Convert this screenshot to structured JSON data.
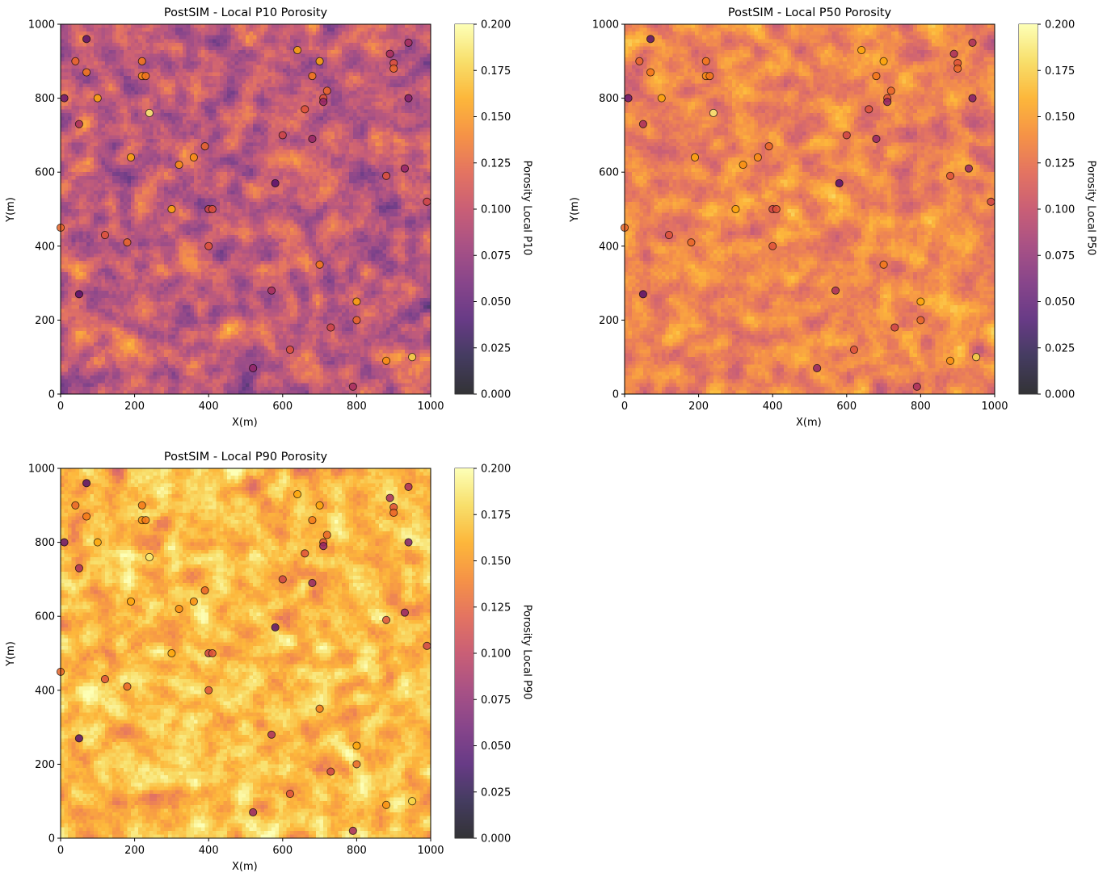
{
  "chart_data": [
    {
      "type": "heatmap",
      "title": "PostSIM - Local P10 Porosity",
      "xlabel": "X(m)",
      "ylabel": "Y(m)",
      "xlim": [
        0,
        1000
      ],
      "ylim": [
        0,
        1000
      ],
      "xticks": [
        "0",
        "200",
        "400",
        "600",
        "800",
        "1000"
      ],
      "yticks": [
        "0",
        "200",
        "400",
        "600",
        "800",
        "1000"
      ],
      "colorbar": {
        "label": "Porosity Local P10",
        "range": [
          0,
          0.2
        ],
        "ticks": [
          "0.000",
          "0.025",
          "0.050",
          "0.075",
          "0.100",
          "0.125",
          "0.150",
          "0.175",
          "0.200"
        ]
      },
      "colormap": "inferno",
      "field_mean": 0.095,
      "field_spread": 0.022,
      "grid_cells": 100
    },
    {
      "type": "heatmap",
      "title": "PostSIM - Local P50 Porosity",
      "xlabel": "X(m)",
      "ylabel": "Y(m)",
      "xlim": [
        0,
        1000
      ],
      "ylim": [
        0,
        1000
      ],
      "xticks": [
        "0",
        "200",
        "400",
        "600",
        "800",
        "1000"
      ],
      "yticks": [
        "0",
        "200",
        "400",
        "600",
        "800",
        "1000"
      ],
      "colorbar": {
        "label": "Porosity Local P50",
        "range": [
          0,
          0.2
        ],
        "ticks": [
          "0.000",
          "0.025",
          "0.050",
          "0.075",
          "0.100",
          "0.125",
          "0.150",
          "0.175",
          "0.200"
        ]
      },
      "colormap": "inferno",
      "field_mean": 0.132,
      "field_spread": 0.016,
      "grid_cells": 100
    },
    {
      "type": "heatmap",
      "title": "PostSIM - Local P90 Porosity",
      "xlabel": "X(m)",
      "ylabel": "Y(m)",
      "xlim": [
        0,
        1000
      ],
      "ylim": [
        0,
        1000
      ],
      "xticks": [
        "0",
        "200",
        "400",
        "600",
        "800",
        "1000"
      ],
      "yticks": [
        "0",
        "200",
        "400",
        "600",
        "800",
        "1000"
      ],
      "colorbar": {
        "label": "Porosity Local P90",
        "range": [
          0,
          0.2
        ],
        "ticks": [
          "0.000",
          "0.025",
          "0.050",
          "0.075",
          "0.100",
          "0.125",
          "0.150",
          "0.175",
          "0.200"
        ]
      },
      "colormap": "inferno",
      "field_mean": 0.163,
      "field_spread": 0.017,
      "grid_cells": 100
    }
  ],
  "well_data": [
    [
      70,
      960,
      0.05
    ],
    [
      40,
      900,
      0.13
    ],
    [
      70,
      870,
      0.14
    ],
    [
      220,
      900,
      0.14
    ],
    [
      220,
      860,
      0.15
    ],
    [
      230,
      860,
      0.14
    ],
    [
      10,
      800,
      0.06
    ],
    [
      100,
      800,
      0.16
    ],
    [
      50,
      730,
      0.09
    ],
    [
      240,
      760,
      0.19
    ],
    [
      640,
      930,
      0.16
    ],
    [
      700,
      900,
      0.16
    ],
    [
      680,
      860,
      0.14
    ],
    [
      720,
      820,
      0.13
    ],
    [
      710,
      800,
      0.12
    ],
    [
      710,
      790,
      0.08
    ],
    [
      660,
      770,
      0.12
    ],
    [
      890,
      920,
      0.09
    ],
    [
      900,
      895,
      0.12
    ],
    [
      900,
      880,
      0.13
    ],
    [
      940,
      950,
      0.09
    ],
    [
      940,
      800,
      0.07
    ],
    [
      600,
      700,
      0.11
    ],
    [
      680,
      690,
      0.08
    ],
    [
      390,
      670,
      0.13
    ],
    [
      360,
      640,
      0.15
    ],
    [
      190,
      640,
      0.16
    ],
    [
      320,
      620,
      0.15
    ],
    [
      580,
      570,
      0.05
    ],
    [
      880,
      590,
      0.12
    ],
    [
      930,
      610,
      0.08
    ],
    [
      990,
      520,
      0.11
    ],
    [
      300,
      500,
      0.16
    ],
    [
      400,
      500,
      0.11
    ],
    [
      410,
      500,
      0.12
    ],
    [
      0,
      450,
      0.13
    ],
    [
      120,
      430,
      0.12
    ],
    [
      180,
      410,
      0.13
    ],
    [
      400,
      400,
      0.12
    ],
    [
      700,
      350,
      0.14
    ],
    [
      570,
      280,
      0.09
    ],
    [
      50,
      270,
      0.05
    ],
    [
      800,
      250,
      0.16
    ],
    [
      800,
      200,
      0.13
    ],
    [
      730,
      180,
      0.11
    ],
    [
      620,
      120,
      0.12
    ],
    [
      880,
      90,
      0.15
    ],
    [
      950,
      100,
      0.18
    ],
    [
      520,
      70,
      0.08
    ],
    [
      790,
      20,
      0.09
    ]
  ]
}
